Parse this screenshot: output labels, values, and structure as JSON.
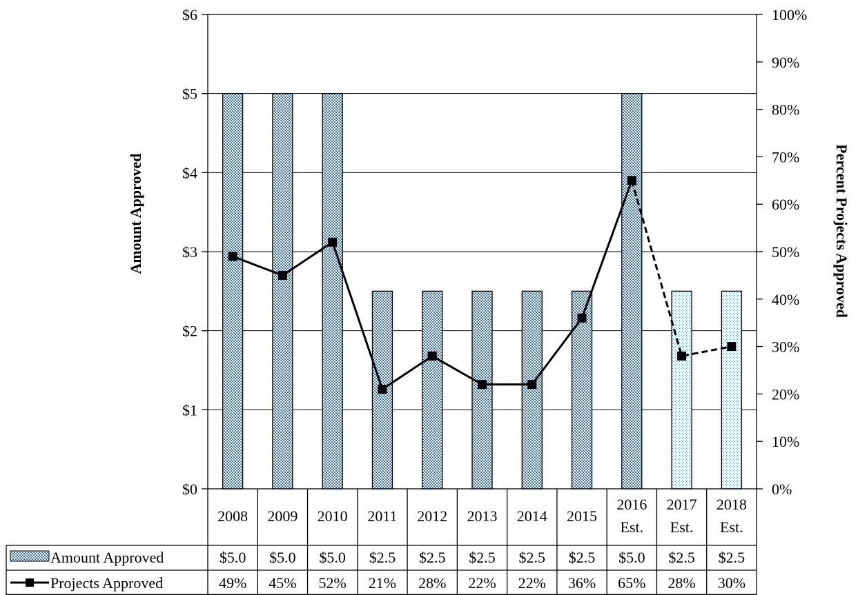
{
  "chart_data": {
    "type": "bar",
    "categories": [
      [
        "2008"
      ],
      [
        "2009"
      ],
      [
        "2010"
      ],
      [
        "2011"
      ],
      [
        "2012"
      ],
      [
        "2013"
      ],
      [
        "2014"
      ],
      [
        "2015"
      ],
      [
        "2016",
        "Est."
      ],
      [
        "2017",
        "Est."
      ],
      [
        "2018",
        "Est."
      ]
    ],
    "ylabel": "Amount Approved",
    "y2label": "Percent Projects Approved",
    "ylim": [
      0,
      6
    ],
    "y2lim": [
      0,
      100
    ],
    "yticks": [
      "$0",
      "$1",
      "$2",
      "$3",
      "$4",
      "$5",
      "$6"
    ],
    "y2ticks": [
      "0%",
      "10%",
      "20%",
      "30%",
      "40%",
      "50%",
      "60%",
      "70%",
      "80%",
      "90%",
      "100%"
    ],
    "grid": true,
    "legend": "data-table",
    "series": [
      {
        "name": "Amount Approved",
        "kind": "bar",
        "axis": "left",
        "values": [
          5.0,
          5.0,
          5.0,
          2.5,
          2.5,
          2.5,
          2.5,
          2.5,
          5.0,
          2.5,
          2.5
        ],
        "labels": [
          "$5.0",
          "$5.0",
          "$5.0",
          "$2.5",
          "$2.5",
          "$2.5",
          "$2.5",
          "$2.5",
          "$5.0",
          "$2.5",
          "$2.5"
        ],
        "color": "#4F81BD"
      },
      {
        "name": "Projects Approved",
        "kind": "line",
        "axis": "right",
        "values": [
          49,
          45,
          52,
          21,
          28,
          22,
          22,
          36,
          65,
          28,
          30
        ],
        "labels": [
          "49%",
          "45%",
          "52%",
          "21%",
          "28%",
          "22%",
          "22%",
          "36%",
          "65%",
          "28%",
          "30%"
        ],
        "color": "#000000"
      }
    ],
    "estimated_from_index": 9
  }
}
